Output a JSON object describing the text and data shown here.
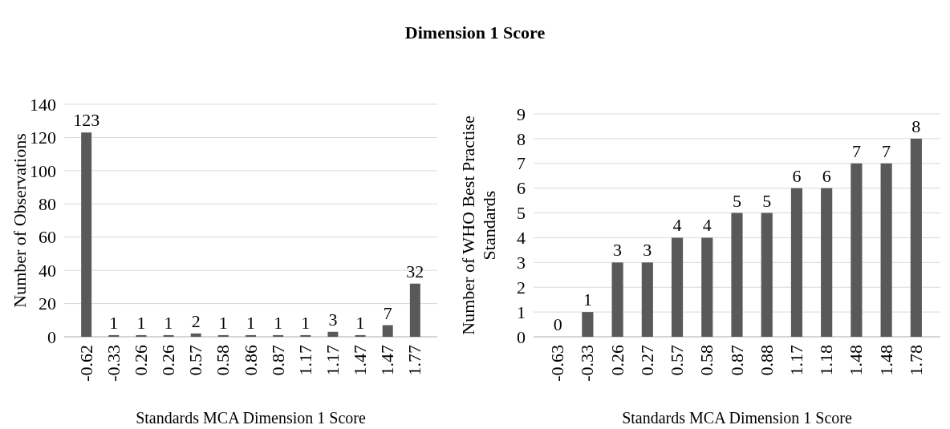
{
  "chart_data": [
    {
      "type": "bar",
      "title": "Dimension 1 Score",
      "xlabel": "Standards MCA Dimension 1 Score",
      "ylabel": "Number of Observations",
      "categories": [
        "-0.62",
        "-0.33",
        "0.26",
        "0.26",
        "0.57",
        "0.58",
        "0.86",
        "0.87",
        "1.17",
        "1.17",
        "1.47",
        "1.47",
        "1.77"
      ],
      "values": [
        123,
        1,
        1,
        1,
        2,
        1,
        1,
        1,
        1,
        3,
        1,
        7,
        32
      ],
      "color": "#595959",
      "ylim": [
        0,
        140
      ],
      "yticks": [
        0,
        20,
        40,
        60,
        80,
        100,
        120,
        140
      ],
      "grid": "y",
      "data_labels": true
    },
    {
      "type": "bar",
      "xlabel": "Standards MCA Dimension 1 Score",
      "ylabel": "Number of WHO Best Practise Standards",
      "categories": [
        "-0.63",
        "-0.33",
        "0.26",
        "0.27",
        "0.57",
        "0.58",
        "0.87",
        "0.88",
        "1.17",
        "1.18",
        "1.48",
        "1.48",
        "1.78"
      ],
      "values": [
        0,
        1,
        3,
        3,
        4,
        4,
        5,
        5,
        6,
        6,
        7,
        7,
        8
      ],
      "color": "#595959",
      "ylim": [
        0,
        9
      ],
      "yticks": [
        0,
        1,
        2,
        3,
        4,
        5,
        6,
        7,
        8,
        9
      ],
      "grid": "y",
      "data_labels": true
    }
  ]
}
